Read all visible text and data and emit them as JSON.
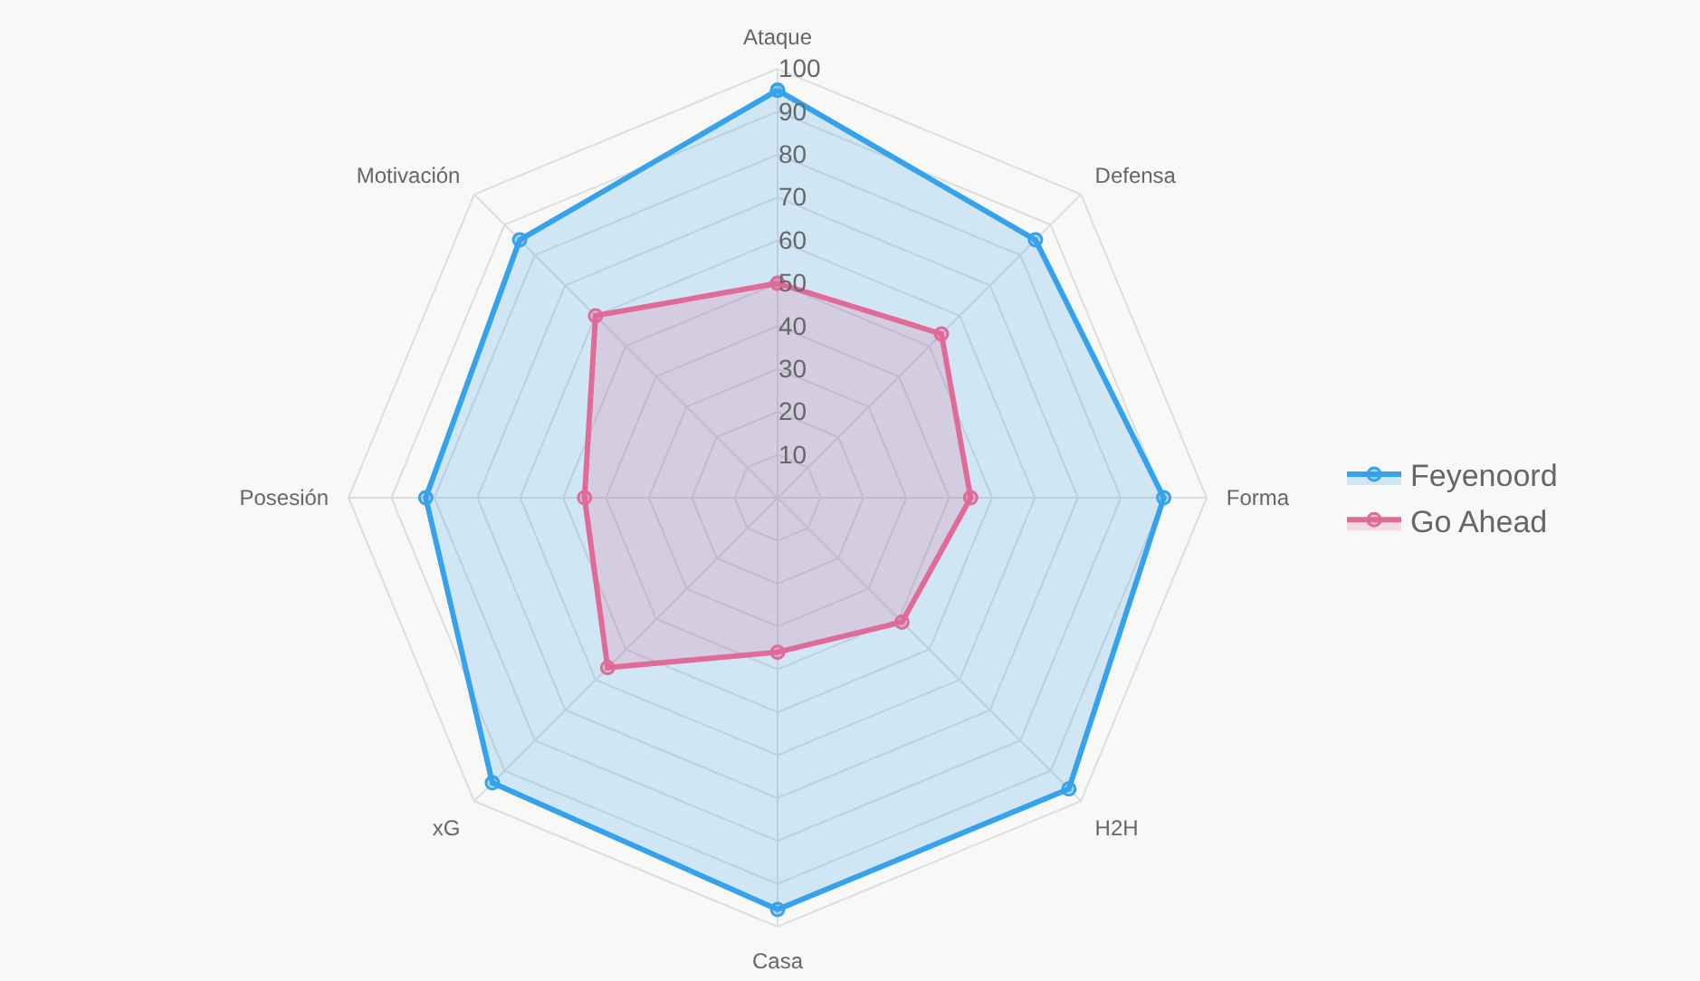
{
  "chart_data": {
    "type": "radar",
    "categories": [
      "Ataque",
      "Defensa",
      "Forma",
      "H2H",
      "Casa",
      "xG",
      "Posesión",
      "Motivación"
    ],
    "series": [
      {
        "name": "Feyenoord",
        "color": "#36a2eb",
        "values": [
          95,
          85,
          90,
          96,
          96,
          94,
          82,
          85
        ]
      },
      {
        "name": "Go Ahead",
        "color": "#e06b97",
        "values": [
          50,
          54,
          45,
          41,
          36,
          56,
          45,
          60
        ]
      }
    ],
    "ylim": [
      0,
      100
    ],
    "yticks": [
      10,
      20,
      30,
      40,
      50,
      60,
      70,
      80,
      90,
      100
    ],
    "grid": true,
    "legend": "right",
    "marker": "circle",
    "line_style": "solid"
  }
}
